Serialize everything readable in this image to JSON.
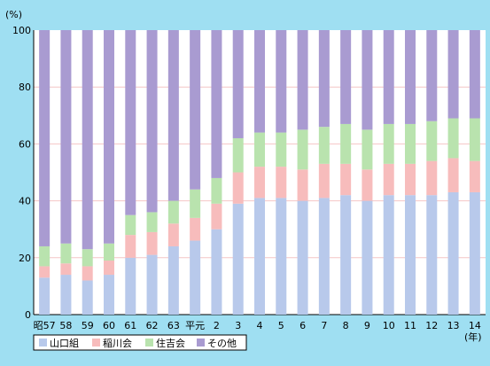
{
  "chart_data": {
    "type": "bar",
    "stacked": true,
    "unit_label": "(%)",
    "x_unit_label": "(年)",
    "ylim": [
      0,
      100
    ],
    "yticks": [
      0,
      20,
      40,
      60,
      80,
      100
    ],
    "grid": true,
    "legend_position": "bottom-left",
    "categories": [
      "昭57",
      "58",
      "59",
      "60",
      "61",
      "62",
      "63",
      "平元",
      "2",
      "3",
      "4",
      "5",
      "6",
      "7",
      "8",
      "9",
      "10",
      "11",
      "12",
      "13",
      "14"
    ],
    "series": [
      {
        "name": "山口組",
        "color": "#b8c9eb",
        "values": [
          13,
          14,
          12,
          14,
          20,
          21,
          24,
          26,
          30,
          39,
          41,
          41,
          40,
          41,
          42,
          40,
          42,
          42,
          42,
          43,
          43
        ]
      },
      {
        "name": "稲川会",
        "color": "#f7bcbc",
        "values": [
          4,
          4,
          5,
          5,
          8,
          8,
          8,
          8,
          9,
          11,
          11,
          11,
          11,
          12,
          11,
          11,
          11,
          11,
          12,
          12,
          11
        ]
      },
      {
        "name": "住吉会",
        "color": "#b9e3ae",
        "values": [
          7,
          7,
          6,
          6,
          7,
          7,
          8,
          10,
          9,
          12,
          12,
          12,
          14,
          13,
          14,
          14,
          14,
          14,
          14,
          14,
          15
        ]
      },
      {
        "name": "その他",
        "color": "#a99bd1",
        "values": [
          76,
          75,
          77,
          75,
          65,
          64,
          60,
          56,
          52,
          38,
          36,
          36,
          35,
          34,
          33,
          35,
          33,
          33,
          32,
          31,
          31
        ]
      }
    ]
  }
}
